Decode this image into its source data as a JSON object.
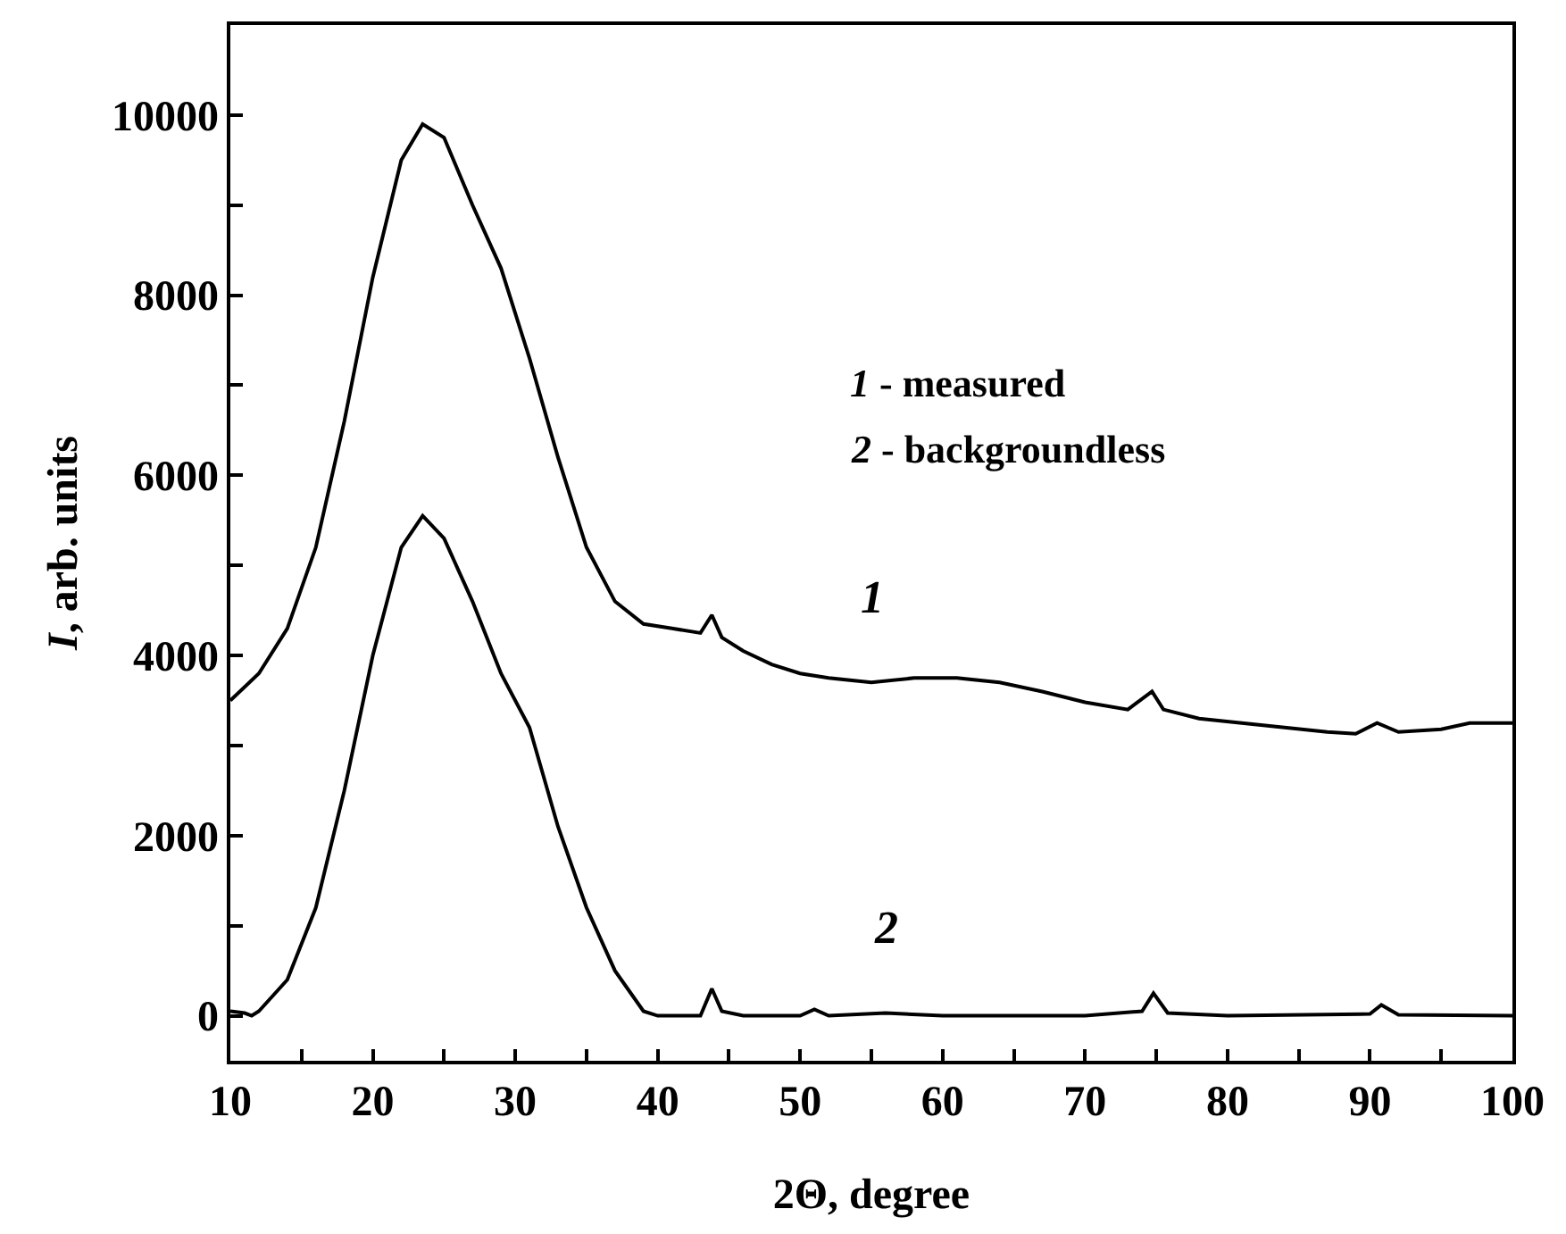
{
  "chart_data": {
    "type": "line",
    "xlabel": "2Θ, degree",
    "ylabel": "I, arb. units",
    "xlim": [
      10,
      100
    ],
    "ylim": [
      -500,
      11000
    ],
    "xticks": [
      10,
      {
        "value": 15,
        "label": null
      },
      20,
      {
        "value": 25,
        "label": null
      },
      30,
      {
        "value": 35,
        "label": null
      },
      40,
      {
        "value": 45,
        "label": null
      },
      50,
      {
        "value": 55,
        "label": null
      },
      60,
      {
        "value": 65,
        "label": null
      },
      70,
      {
        "value": 75,
        "label": null
      },
      80,
      {
        "value": 85,
        "label": null
      },
      90,
      {
        "value": 95,
        "label": null
      },
      100
    ],
    "yticks": [
      0,
      {
        "value": 1000,
        "label": null
      },
      2000,
      {
        "value": 3000,
        "label": null
      },
      4000,
      {
        "value": 5000,
        "label": null
      },
      6000,
      {
        "value": 7000,
        "label": null
      },
      8000,
      {
        "value": 9000,
        "label": null
      },
      10000
    ],
    "legend": false,
    "marker": "none",
    "line_style": "solid",
    "series": [
      {
        "name": "1",
        "color": "#000000",
        "x": [
          10,
          12,
          14,
          16,
          18,
          20,
          22,
          23.5,
          25,
          27,
          29,
          31,
          33,
          35,
          37,
          39,
          41,
          43,
          43.8,
          44.5,
          46,
          48,
          50,
          52,
          55,
          58,
          61,
          64,
          67,
          70,
          73,
          74.7,
          75.5,
          78,
          81,
          84,
          87,
          89,
          90.5,
          92,
          95,
          97,
          100
        ],
        "values": [
          3500,
          3800,
          4300,
          5200,
          6600,
          8200,
          9500,
          9900,
          9750,
          9000,
          8300,
          7300,
          6200,
          5200,
          4600,
          4350,
          4300,
          4250,
          4450,
          4200,
          4050,
          3900,
          3800,
          3750,
          3700,
          3750,
          3750,
          3700,
          3600,
          3480,
          3400,
          3600,
          3400,
          3300,
          3250,
          3200,
          3150,
          3130,
          3250,
          3150,
          3180,
          3250,
          3250
        ]
      },
      {
        "name": "2",
        "color": "#000000",
        "x": [
          10,
          11,
          11.5,
          12,
          14,
          16,
          18,
          20,
          22,
          23.5,
          25,
          27,
          29,
          31,
          33,
          35,
          37,
          39,
          40,
          43,
          43.8,
          44.5,
          46,
          50,
          51,
          52,
          56,
          60,
          70,
          74,
          74.8,
          75.8,
          80,
          90,
          90.8,
          92,
          100
        ],
        "values": [
          50,
          30,
          0,
          50,
          400,
          1200,
          2500,
          4000,
          5200,
          5550,
          5300,
          4600,
          3800,
          3200,
          2100,
          1200,
          500,
          50,
          0,
          0,
          300,
          50,
          0,
          0,
          70,
          0,
          30,
          0,
          0,
          50,
          250,
          30,
          0,
          20,
          120,
          10,
          0
        ]
      }
    ],
    "annotations": [
      "1 - measured",
      "2 - backgroundless"
    ]
  }
}
